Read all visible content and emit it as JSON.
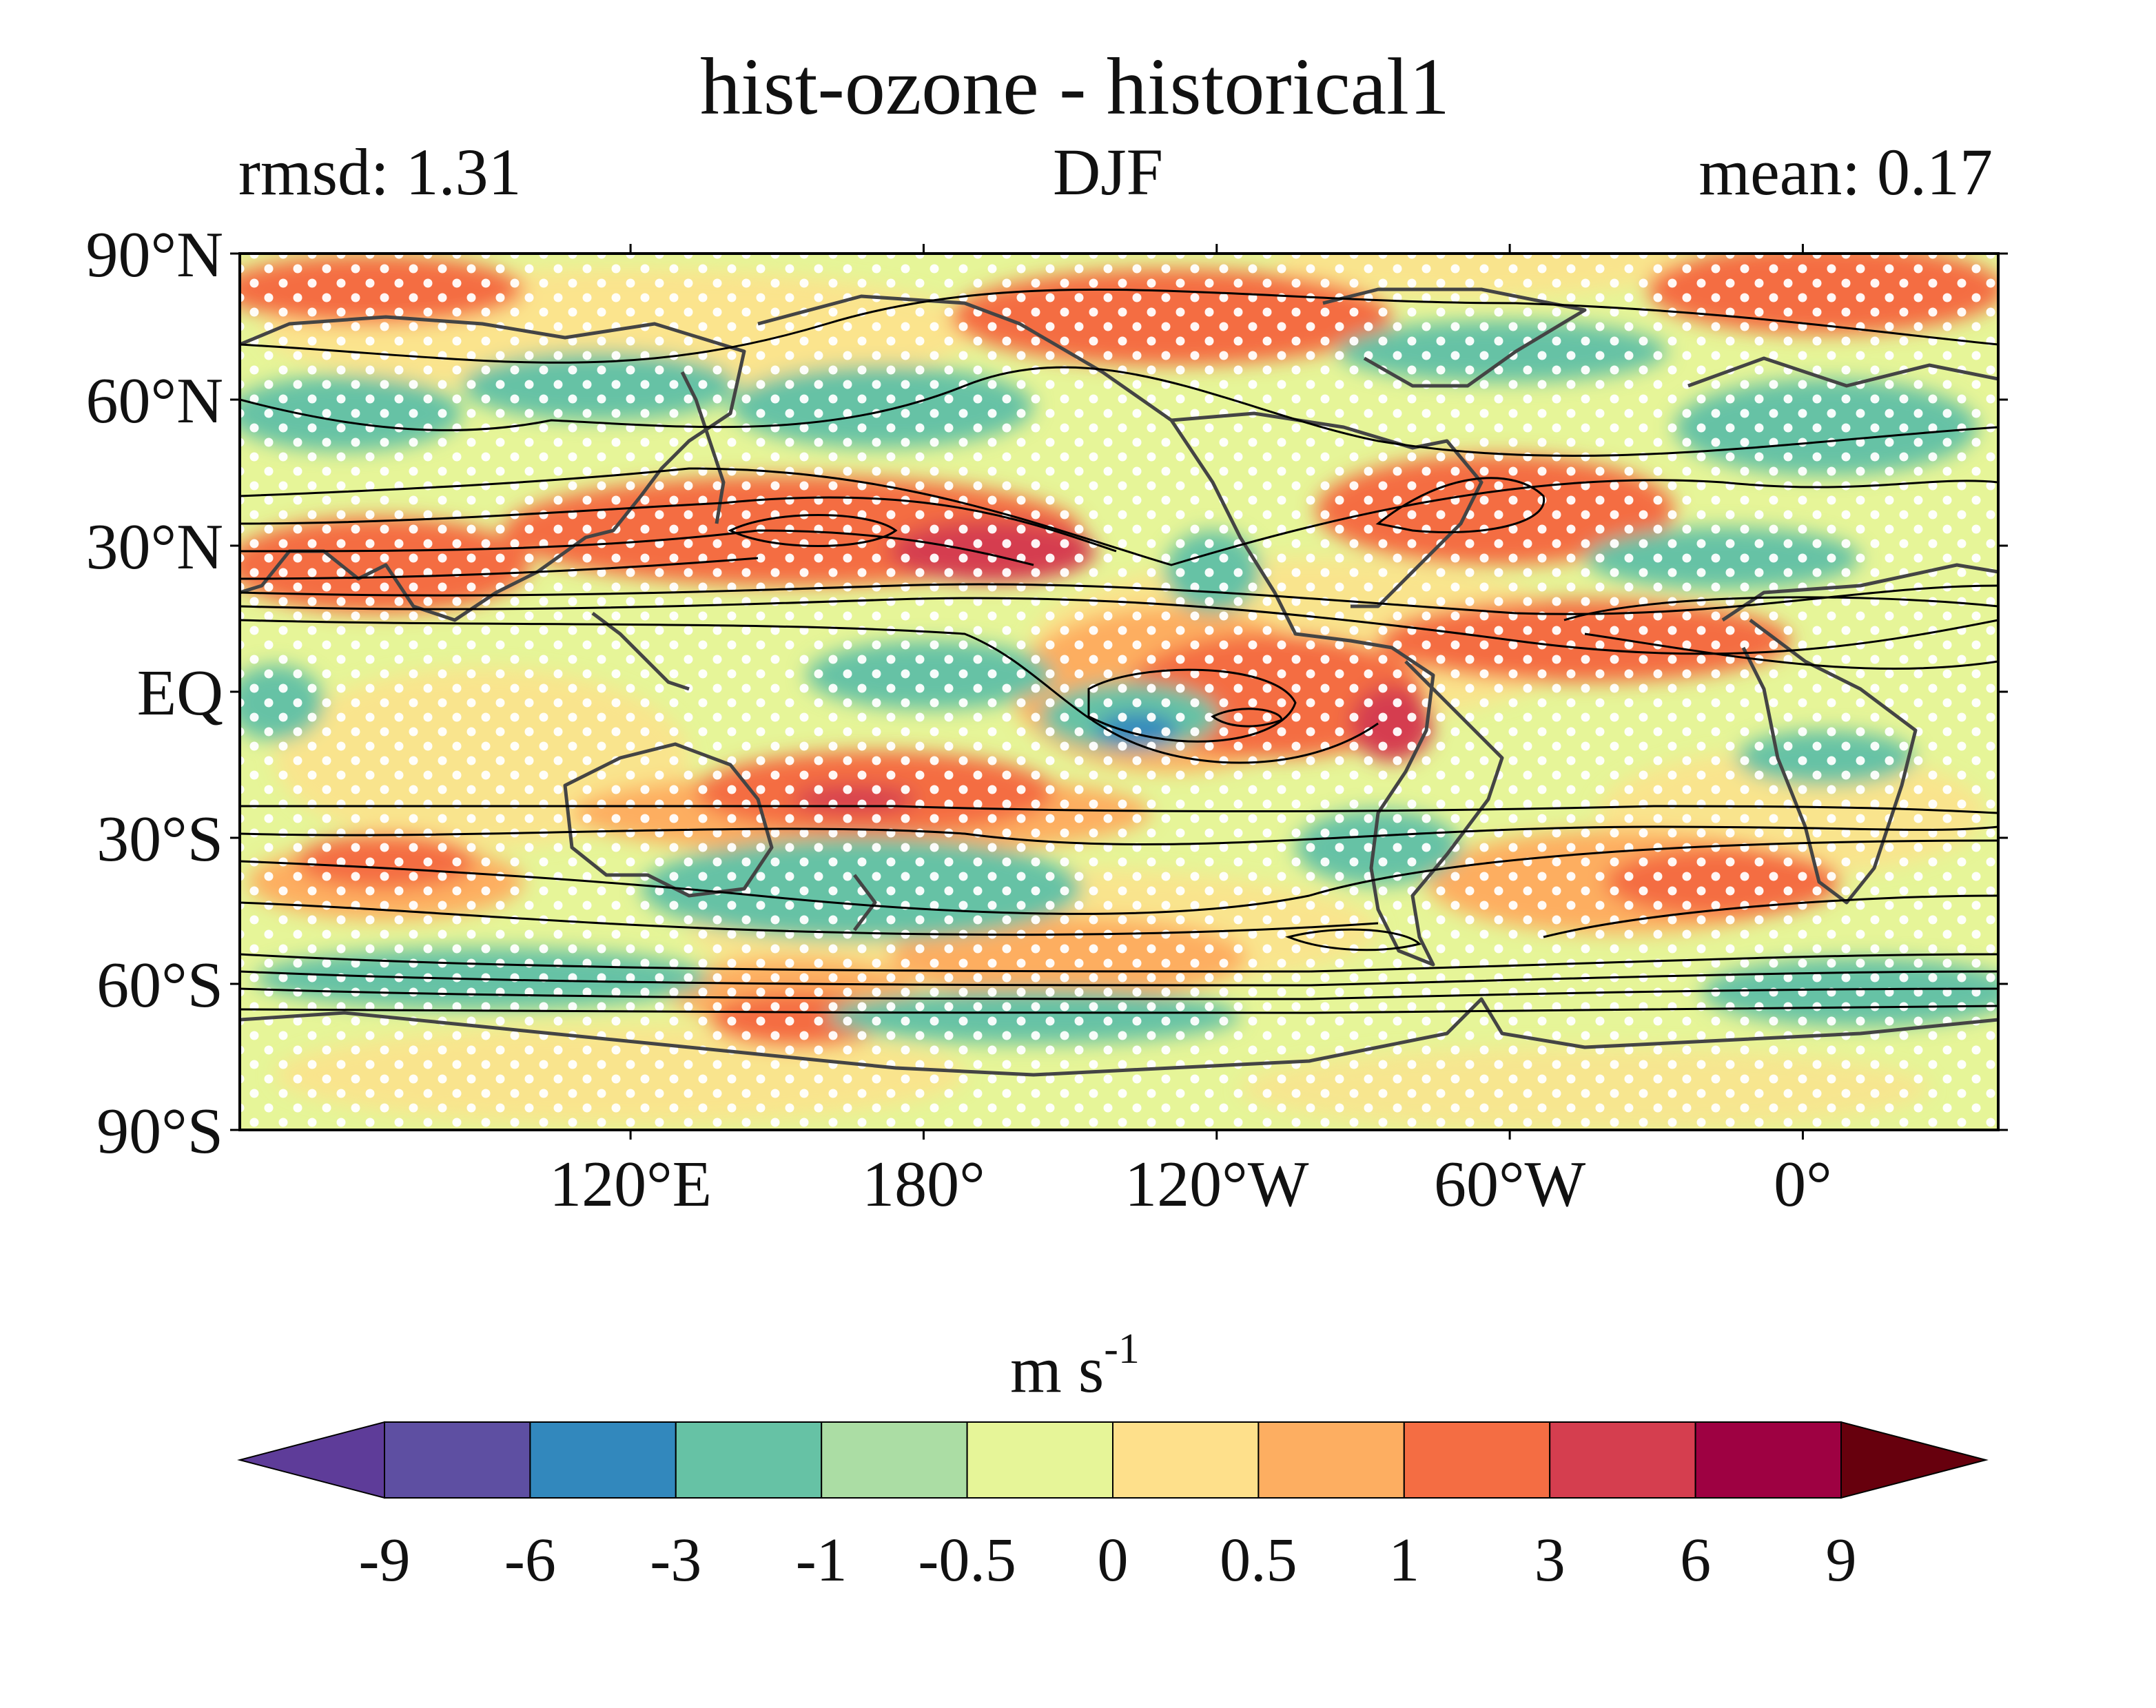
{
  "title": "hist-ozone - historical1",
  "left_label": "rmsd: 1.31",
  "center_label": "DJF",
  "right_label": "mean: 0.17",
  "map": {
    "projection": "PlateCarree",
    "lon_range": [
      40,
      400
    ],
    "lat_range": [
      -90,
      90
    ],
    "y_ticks": [
      {
        "value": 90,
        "label": "90°N"
      },
      {
        "value": 60,
        "label": "60°N"
      },
      {
        "value": 30,
        "label": "30°N"
      },
      {
        "value": 0,
        "label": "EQ"
      },
      {
        "value": -30,
        "label": "30°S"
      },
      {
        "value": -60,
        "label": "60°S"
      },
      {
        "value": -90,
        "label": "90°S"
      }
    ],
    "x_ticks": [
      {
        "value": 120,
        "label": "120°E"
      },
      {
        "value": 180,
        "label": "180°"
      },
      {
        "value": 240,
        "label": "120°W"
      },
      {
        "value": 300,
        "label": "60°W"
      },
      {
        "value": 360,
        "label": "0°"
      }
    ],
    "stippling": "white dots mark significant regions",
    "contour_lines": "black climatology contours",
    "coastline_color": "#444444"
  },
  "colorbar": {
    "unit_main": "m s",
    "unit_sup": "-1",
    "extend": "both",
    "levels": [
      "-9",
      "-6",
      "-3",
      "-1",
      "-0.5",
      "0",
      "0.5",
      "1",
      "3",
      "6",
      "9"
    ],
    "colors": [
      "#5e4fa2",
      "#3288bd",
      "#66c2a5",
      "#abdda4",
      "#e6f598",
      "#fee08b",
      "#fdae61",
      "#f46d43",
      "#d53e4f",
      "#9e0142"
    ],
    "under_color": "#5e3c99",
    "over_color": "#67000d"
  }
}
